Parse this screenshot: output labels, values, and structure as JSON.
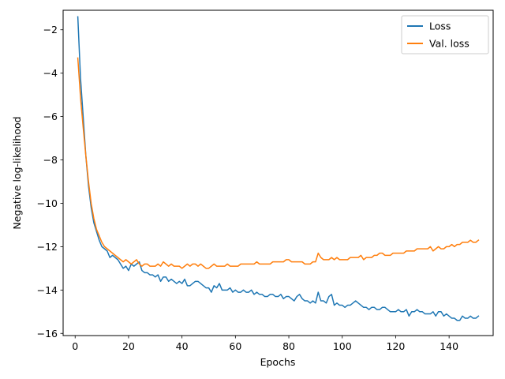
{
  "chart_data": {
    "type": "line",
    "title": "",
    "xlabel": "Epochs",
    "ylabel": "Negative log-likelihood",
    "xlim": [
      -4.5,
      156.5
    ],
    "ylim": [
      -16.1,
      -1.1
    ],
    "xticks": [
      0,
      20,
      40,
      60,
      80,
      100,
      120,
      140
    ],
    "yticks": [
      -16,
      -14,
      -12,
      -10,
      -8,
      -6,
      -4,
      -2
    ],
    "grid": false,
    "legend_position": "top-right",
    "x": [
      1,
      2,
      3,
      4,
      5,
      6,
      7,
      8,
      9,
      10,
      11,
      12,
      13,
      14,
      15,
      16,
      17,
      18,
      19,
      20,
      21,
      22,
      23,
      24,
      25,
      26,
      27,
      28,
      29,
      30,
      31,
      32,
      33,
      34,
      35,
      36,
      37,
      38,
      39,
      40,
      41,
      42,
      43,
      44,
      45,
      46,
      47,
      48,
      49,
      50,
      51,
      52,
      53,
      54,
      55,
      56,
      57,
      58,
      59,
      60,
      61,
      62,
      63,
      64,
      65,
      66,
      67,
      68,
      69,
      70,
      71,
      72,
      73,
      74,
      75,
      76,
      77,
      78,
      79,
      80,
      81,
      82,
      83,
      84,
      85,
      86,
      87,
      88,
      89,
      90,
      91,
      92,
      93,
      94,
      95,
      96,
      97,
      98,
      99,
      100,
      101,
      102,
      103,
      104,
      105,
      106,
      107,
      108,
      109,
      110,
      111,
      112,
      113,
      114,
      115,
      116,
      117,
      118,
      119,
      120,
      121,
      122,
      123,
      124,
      125,
      126,
      127,
      128,
      129,
      130,
      131,
      132,
      133,
      134,
      135,
      136,
      137,
      138,
      139,
      140,
      141,
      142,
      143,
      144,
      145,
      146,
      147,
      148,
      149,
      150,
      151
    ],
    "series": [
      {
        "name": "Loss",
        "color": "#1f77b4",
        "values": [
          -1.4,
          -4.2,
          -6.0,
          -7.8,
          -9.2,
          -10.2,
          -10.9,
          -11.3,
          -11.7,
          -12.0,
          -12.1,
          -12.2,
          -12.5,
          -12.4,
          -12.5,
          -12.6,
          -12.8,
          -13.0,
          -12.9,
          -13.1,
          -12.8,
          -12.9,
          -12.8,
          -12.7,
          -13.1,
          -13.2,
          -13.2,
          -13.3,
          -13.3,
          -13.4,
          -13.3,
          -13.6,
          -13.4,
          -13.4,
          -13.6,
          -13.5,
          -13.6,
          -13.7,
          -13.6,
          -13.7,
          -13.5,
          -13.8,
          -13.8,
          -13.7,
          -13.6,
          -13.6,
          -13.7,
          -13.8,
          -13.9,
          -13.9,
          -14.1,
          -13.8,
          -13.9,
          -13.7,
          -14.0,
          -14.0,
          -14.0,
          -13.9,
          -14.1,
          -14.0,
          -14.1,
          -14.1,
          -14.0,
          -14.1,
          -14.1,
          -14.0,
          -14.2,
          -14.1,
          -14.2,
          -14.2,
          -14.3,
          -14.3,
          -14.2,
          -14.2,
          -14.3,
          -14.3,
          -14.2,
          -14.4,
          -14.3,
          -14.3,
          -14.4,
          -14.5,
          -14.3,
          -14.2,
          -14.4,
          -14.5,
          -14.5,
          -14.6,
          -14.5,
          -14.6,
          -14.1,
          -14.5,
          -14.5,
          -14.6,
          -14.3,
          -14.2,
          -14.7,
          -14.6,
          -14.7,
          -14.7,
          -14.8,
          -14.7,
          -14.7,
          -14.6,
          -14.5,
          -14.6,
          -14.7,
          -14.8,
          -14.8,
          -14.9,
          -14.8,
          -14.8,
          -14.9,
          -14.9,
          -14.8,
          -14.8,
          -14.9,
          -15.0,
          -15.0,
          -15.0,
          -14.9,
          -15.0,
          -15.0,
          -14.9,
          -15.2,
          -15.0,
          -15.0,
          -14.9,
          -15.0,
          -15.0,
          -15.1,
          -15.1,
          -15.1,
          -15.0,
          -15.2,
          -15.0,
          -15.0,
          -15.2,
          -15.1,
          -15.2,
          -15.3,
          -15.3,
          -15.4,
          -15.4,
          -15.2,
          -15.3,
          -15.3,
          -15.2,
          -15.3,
          -15.3,
          -15.2
        ]
      },
      {
        "name": "Val. loss",
        "color": "#ff7f0e",
        "values": [
          -3.3,
          -5.1,
          -6.5,
          -7.8,
          -9.0,
          -10.0,
          -10.7,
          -11.2,
          -11.5,
          -11.8,
          -12.0,
          -12.1,
          -12.2,
          -12.3,
          -12.4,
          -12.5,
          -12.6,
          -12.7,
          -12.6,
          -12.7,
          -12.8,
          -12.7,
          -12.6,
          -12.8,
          -12.9,
          -12.8,
          -12.8,
          -12.9,
          -12.9,
          -12.9,
          -12.8,
          -12.9,
          -12.7,
          -12.8,
          -12.9,
          -12.8,
          -12.9,
          -12.9,
          -12.9,
          -13.0,
          -12.9,
          -12.8,
          -12.9,
          -12.8,
          -12.8,
          -12.9,
          -12.8,
          -12.9,
          -13.0,
          -13.0,
          -12.9,
          -12.8,
          -12.9,
          -12.9,
          -12.9,
          -12.9,
          -12.8,
          -12.9,
          -12.9,
          -12.9,
          -12.9,
          -12.8,
          -12.8,
          -12.8,
          -12.8,
          -12.8,
          -12.8,
          -12.7,
          -12.8,
          -12.8,
          -12.8,
          -12.8,
          -12.8,
          -12.7,
          -12.7,
          -12.7,
          -12.7,
          -12.7,
          -12.6,
          -12.6,
          -12.7,
          -12.7,
          -12.7,
          -12.7,
          -12.7,
          -12.8,
          -12.8,
          -12.8,
          -12.7,
          -12.7,
          -12.3,
          -12.5,
          -12.6,
          -12.6,
          -12.6,
          -12.5,
          -12.6,
          -12.5,
          -12.6,
          -12.6,
          -12.6,
          -12.6,
          -12.5,
          -12.5,
          -12.5,
          -12.5,
          -12.4,
          -12.6,
          -12.5,
          -12.5,
          -12.5,
          -12.4,
          -12.4,
          -12.3,
          -12.3,
          -12.4,
          -12.4,
          -12.4,
          -12.3,
          -12.3,
          -12.3,
          -12.3,
          -12.3,
          -12.2,
          -12.2,
          -12.2,
          -12.2,
          -12.1,
          -12.1,
          -12.1,
          -12.1,
          -12.1,
          -12.0,
          -12.2,
          -12.1,
          -12.0,
          -12.1,
          -12.1,
          -12.0,
          -12.0,
          -11.9,
          -12.0,
          -11.9,
          -11.9,
          -11.8,
          -11.8,
          -11.8,
          -11.7,
          -11.8,
          -11.8,
          -11.7
        ]
      }
    ]
  }
}
